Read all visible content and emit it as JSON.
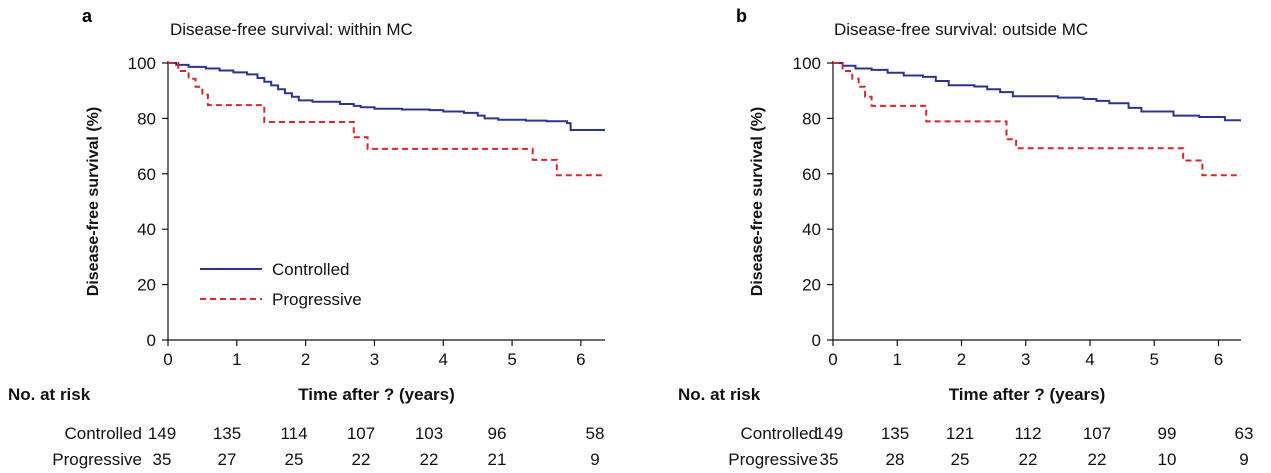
{
  "colors": {
    "controlled": "#2b3590",
    "progressive": "#d9262e",
    "axis": "#111111"
  },
  "chart_data": [
    {
      "type": "line",
      "panel_label": "a",
      "title": "Disease-free survival: within MC",
      "xlabel": "Time after ? (years)",
      "ylabel": "Disease-free survival (%)",
      "xlim": [
        0,
        6.35
      ],
      "ylim": [
        0,
        100
      ],
      "xticks": [
        "0",
        "1",
        "2",
        "3",
        "4",
        "5",
        "6"
      ],
      "yticks": [
        "0",
        "20",
        "40",
        "60",
        "80",
        "100"
      ],
      "legend": {
        "position": "bottom-left",
        "entries": [
          "Controlled",
          "Progressive"
        ]
      },
      "series": [
        {
          "name": "Controlled",
          "style": "solid",
          "x": [
            0,
            0.12,
            0.3,
            0.55,
            0.75,
            0.95,
            1.15,
            1.3,
            1.4,
            1.5,
            1.6,
            1.7,
            1.8,
            1.9,
            2.1,
            2.5,
            2.7,
            2.8,
            3.0,
            3.4,
            3.8,
            4.0,
            4.3,
            4.5,
            4.6,
            4.8,
            5.2,
            5.5,
            5.8,
            5.85,
            6.35
          ],
          "y": [
            100,
            99.3,
            98.6,
            98.0,
            97.3,
            96.6,
            95.9,
            94.6,
            93.2,
            91.9,
            90.5,
            89.1,
            87.8,
            86.5,
            86.0,
            85.2,
            84.5,
            84.0,
            83.5,
            83.2,
            83.0,
            82.5,
            82.0,
            81.0,
            80.0,
            79.5,
            79.2,
            79.0,
            78.3,
            75.8,
            75.8
          ]
        },
        {
          "name": "Progressive",
          "style": "dashed",
          "x": [
            0,
            0.15,
            0.3,
            0.4,
            0.5,
            0.58,
            1.3,
            1.4,
            2.6,
            2.7,
            2.9,
            5.3,
            5.65,
            6.35
          ],
          "y": [
            100,
            97.1,
            94.3,
            91.4,
            88.6,
            84.8,
            84.8,
            78.7,
            78.7,
            73.2,
            69.0,
            65.0,
            59.5,
            59.5
          ]
        }
      ],
      "risk_table": {
        "header": "No. at risk",
        "rows": [
          {
            "label": "Controlled",
            "values": [
              "149",
              "135",
              "114",
              "107",
              "103",
              "96",
              "58"
            ]
          },
          {
            "label": "Progressive",
            "values": [
              "35",
              "27",
              "25",
              "22",
              "22",
              "21",
              "9"
            ]
          }
        ]
      }
    },
    {
      "type": "line",
      "panel_label": "b",
      "title": "Disease-free survival: outside MC",
      "xlabel": "Time after ? (years)",
      "ylabel": "Disease-free survival (%)",
      "xlim": [
        0,
        6.35
      ],
      "ylim": [
        0,
        100
      ],
      "xticks": [
        "0",
        "1",
        "2",
        "3",
        "4",
        "5",
        "6"
      ],
      "yticks": [
        "0",
        "20",
        "40",
        "60",
        "80",
        "100"
      ],
      "series": [
        {
          "name": "Controlled",
          "style": "solid",
          "x": [
            0,
            0.15,
            0.35,
            0.6,
            0.85,
            1.1,
            1.4,
            1.6,
            1.8,
            2.2,
            2.4,
            2.6,
            2.8,
            3.5,
            3.9,
            4.1,
            4.3,
            4.6,
            4.8,
            5.3,
            5.7,
            6.1,
            6.35
          ],
          "y": [
            100,
            99.0,
            98.0,
            97.5,
            96.5,
            95.5,
            95.0,
            93.5,
            92.0,
            91.5,
            90.5,
            89.5,
            88.0,
            87.5,
            87.0,
            86.3,
            85.5,
            83.8,
            82.5,
            81.0,
            80.5,
            79.3,
            79.3
          ]
        },
        {
          "name": "Progressive",
          "style": "dashed",
          "x": [
            0,
            0.15,
            0.3,
            0.4,
            0.5,
            0.6,
            1.3,
            1.45,
            2.6,
            2.7,
            2.85,
            5.45,
            5.75,
            6.35
          ],
          "y": [
            100,
            97.1,
            94.3,
            91.4,
            87.8,
            84.5,
            84.5,
            78.9,
            78.9,
            72.5,
            69.2,
            64.8,
            59.5,
            59.5
          ]
        }
      ],
      "risk_table": {
        "header": "No. at risk",
        "rows": [
          {
            "label": "Controlled",
            "values": [
              "149",
              "135",
              "121",
              "112",
              "107",
              "99",
              "63"
            ]
          },
          {
            "label": "Progressive",
            "values": [
              "35",
              "28",
              "25",
              "22",
              "22",
              "10",
              "9"
            ]
          }
        ]
      }
    }
  ]
}
